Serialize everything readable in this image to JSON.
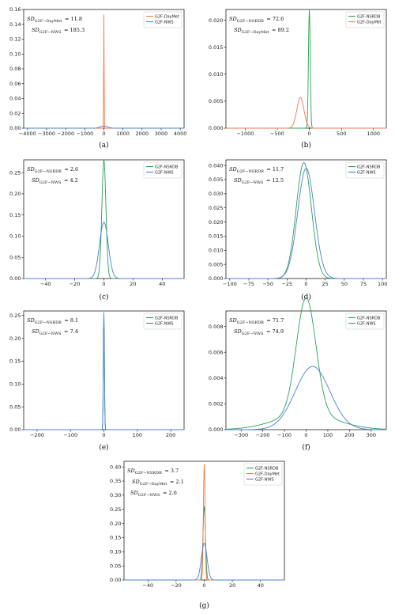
{
  "colors": {
    "NSRDB": "#2ca05a",
    "DayMet": "#ee7b4a",
    "NWS": "#4c7fd4"
  },
  "chart_data": [
    {
      "type": "line",
      "caption": "(a)",
      "xlim": [
        -4200,
        4200
      ],
      "ylim": [
        0,
        0.16
      ],
      "xticks": [
        -4000,
        -3000,
        -2000,
        -1000,
        0,
        1000,
        2000,
        3000,
        4000
      ],
      "xtick_labels": [
        "−4000",
        "−3000",
        "−2000",
        "−1000",
        "0",
        "1000",
        "2000",
        "3000",
        "4000"
      ],
      "yticks": [
        0,
        0.02,
        0.04,
        0.06,
        0.08,
        0.1,
        0.12,
        0.14,
        0.16
      ],
      "ytick_labels": [
        "0.00",
        "0.02",
        "0.04",
        "0.06",
        "0.08",
        "0.10",
        "0.12",
        "0.14",
        "0.16"
      ],
      "legend": {
        "position": "top-right",
        "entries": [
          "DayMet",
          "NWS"
        ],
        "labels": [
          "G2F-DayMet",
          "G2F-NWS"
        ]
      },
      "annotations": [
        {
          "sd": "SD",
          "sub": "G2F−DayMet",
          "value": "= 11.8"
        },
        {
          "sd": "SD",
          "sub": "G2F−NWS",
          "value": "= 185.3"
        }
      ],
      "series": [
        {
          "key": "DayMet",
          "peak": 0.153,
          "center": 0,
          "sd": 11.8
        },
        {
          "key": "NWS",
          "peak": 0.003,
          "center": 0,
          "sd": 185.3
        }
      ]
    },
    {
      "type": "line",
      "caption": "(b)",
      "xlim": [
        -1300,
        1200
      ],
      "ylim": [
        0,
        0.022
      ],
      "xticks": [
        -1000,
        -500,
        0,
        500,
        1000
      ],
      "xtick_labels": [
        "−1000",
        "−500",
        "0",
        "500",
        "1000"
      ],
      "yticks": [
        0,
        0.005,
        0.01,
        0.015,
        0.02
      ],
      "ytick_labels": [
        "0.000",
        "0.005",
        "0.010",
        "0.015",
        "0.020"
      ],
      "legend": {
        "position": "top-right",
        "entries": [
          "NSRDB",
          "DayMet"
        ],
        "labels": [
          "G2F-NSRDB",
          "G2F-DayMet"
        ]
      },
      "annotations": [
        {
          "sd": "SD",
          "sub": "G2F−NSRDB",
          "value": "= 72.6"
        },
        {
          "sd": "SD",
          "sub": "G2F−DayMet",
          "value": "= 89.2"
        }
      ],
      "series": [
        {
          "key": "NSRDB",
          "peak": 0.0219,
          "center": 0,
          "sd": 14
        },
        {
          "key": "DayMet",
          "peak": 0.0057,
          "center": -140,
          "sd": 55
        }
      ]
    },
    {
      "type": "line",
      "caption": "(c)",
      "xlim": [
        -55,
        55
      ],
      "ylim": [
        0,
        0.28
      ],
      "xticks": [
        -40,
        -20,
        0,
        20,
        40
      ],
      "xtick_labels": [
        "−40",
        "−20",
        "0",
        "20",
        "40"
      ],
      "yticks": [
        0,
        0.05,
        0.1,
        0.15,
        0.2,
        0.25
      ],
      "ytick_labels": [
        "0.00",
        "0.05",
        "0.10",
        "0.15",
        "0.20",
        "0.25"
      ],
      "legend": {
        "position": "top-right",
        "entries": [
          "NSRDB",
          "NWS"
        ],
        "labels": [
          "G2F-NSRDB",
          "G2F-NWS"
        ]
      },
      "annotations": [
        {
          "sd": "SD",
          "sub": "G2F−NSRDB",
          "value": "= 2.6"
        },
        {
          "sd": "SD",
          "sub": "G2F−NWS",
          "value": "= 4.2"
        }
      ],
      "series": [
        {
          "key": "NSRDB",
          "peak": 0.279,
          "center": 0,
          "sd": 1.4
        },
        {
          "key": "NWS",
          "peak": 0.133,
          "center": 0,
          "sd": 3.0
        }
      ]
    },
    {
      "type": "line",
      "caption": "(d)",
      "xlim": [
        -105,
        105
      ],
      "ylim": [
        0,
        0.042
      ],
      "xticks": [
        -100,
        -75,
        -50,
        -25,
        0,
        25,
        50,
        75,
        100
      ],
      "xtick_labels": [
        "−100",
        "−75",
        "−50",
        "−25",
        "0",
        "25",
        "50",
        "75",
        "100"
      ],
      "yticks": [
        0,
        0.005,
        0.01,
        0.015,
        0.02,
        0.025,
        0.03,
        0.035,
        0.04
      ],
      "ytick_labels": [
        "0.000",
        "0.005",
        "0.010",
        "0.015",
        "0.020",
        "0.025",
        "0.030",
        "0.035",
        "0.040"
      ],
      "legend": {
        "position": "top-right",
        "entries": [
          "NSRDB",
          "NWS"
        ],
        "labels": [
          "G2F-NSRDB",
          "G2F-NWS"
        ]
      },
      "annotations": [
        {
          "sd": "SD",
          "sub": "G2F−NSRDB",
          "value": "= 11.7"
        },
        {
          "sd": "SD",
          "sub": "G2F−NWS",
          "value": "= 12.5"
        }
      ],
      "series": [
        {
          "key": "NSRDB",
          "peak": 0.041,
          "center": -3,
          "sd": 10
        },
        {
          "key": "NWS",
          "peak": 0.039,
          "center": 0,
          "sd": 11
        }
      ]
    },
    {
      "type": "line",
      "caption": "(e)",
      "xlim": [
        -240,
        240
      ],
      "ylim": [
        0,
        0.26
      ],
      "xticks": [
        -200,
        -100,
        0,
        100,
        200
      ],
      "xtick_labels": [
        "−200",
        "−100",
        "0",
        "100",
        "200"
      ],
      "yticks": [
        0,
        0.05,
        0.1,
        0.15,
        0.2,
        0.25
      ],
      "ytick_labels": [
        "0.00",
        "0.05",
        "0.10",
        "0.15",
        "0.20",
        "0.25"
      ],
      "legend": {
        "position": "top-right",
        "entries": [
          "NSRDB",
          "NWS"
        ],
        "labels": [
          "G2F-NSRDB",
          "G2F-NWS"
        ]
      },
      "annotations": [
        {
          "sd": "SD",
          "sub": "G2F−NSRDB",
          "value": "= 8.1"
        },
        {
          "sd": "SD",
          "sub": "G2F−NWS",
          "value": "= 7.4"
        }
      ],
      "series": [
        {
          "key": "NSRDB",
          "peak": 0.255,
          "center": 0,
          "sd": 1.6
        },
        {
          "key": "NWS",
          "peak": 0.257,
          "center": 0,
          "sd": 1.55
        }
      ]
    },
    {
      "type": "line",
      "caption": "(f)",
      "xlim": [
        -370,
        370
      ],
      "ylim": [
        0,
        0.0092
      ],
      "xticks": [
        -300,
        -200,
        -100,
        0,
        100,
        200,
        300
      ],
      "xtick_labels": [
        "−300",
        "−200",
        "−100",
        "0",
        "100",
        "200",
        "300"
      ],
      "yticks": [
        0,
        0.002,
        0.004,
        0.006,
        0.008
      ],
      "ytick_labels": [
        "0.000",
        "0.002",
        "0.004",
        "0.006",
        "0.008"
      ],
      "legend": {
        "position": "top-right",
        "entries": [
          "NSRDB",
          "NWS"
        ],
        "labels": [
          "G2F-NSRDB",
          "G2F-NWS"
        ]
      },
      "annotations": [
        {
          "sd": "SD",
          "sub": "G2F−NSRDB",
          "value": "= 71.7"
        },
        {
          "sd": "SD",
          "sub": "G2F−NWS",
          "value": "= 74.9"
        }
      ],
      "series": [
        {
          "key": "NSRDB",
          "peak": 0.009,
          "center": 0,
          "sd": 45,
          "shoulder_peak": 0.0012,
          "shoulder_center": 0,
          "shoulder_sd": 140
        },
        {
          "key": "NWS",
          "peak": 0.0049,
          "center": 30,
          "sd": 80
        }
      ]
    },
    {
      "type": "line",
      "caption": "(g)",
      "xlim": [
        -57,
        57
      ],
      "ylim": [
        0,
        0.42
      ],
      "xticks": [
        -40,
        -20,
        0,
        20,
        40
      ],
      "xtick_labels": [
        "−40",
        "−20",
        "0",
        "20",
        "40"
      ],
      "yticks": [
        0,
        0.05,
        0.1,
        0.15,
        0.2,
        0.25,
        0.3,
        0.35,
        0.4
      ],
      "ytick_labels": [
        "0.00",
        "0.05",
        "0.10",
        "0.15",
        "0.20",
        "0.25",
        "0.30",
        "0.35",
        "0.40"
      ],
      "legend": {
        "position": "top-right",
        "entries": [
          "NSRDB",
          "DayMet",
          "NWS"
        ],
        "labels": [
          "G2F-NSRDB",
          "G2F-DayMet",
          "G2F-NWS"
        ]
      },
      "annotations": [
        {
          "sd": "SD",
          "sub": "G2F−NSRDB",
          "value": "= 3.7"
        },
        {
          "sd": "SD",
          "sub": "G2F−DayMet",
          "value": "= 2.1"
        },
        {
          "sd": "SD",
          "sub": "G2F−NWS",
          "value": "= 2.6"
        }
      ],
      "series": [
        {
          "key": "NSRDB",
          "peak": 0.26,
          "center": 0,
          "sd": 0.9
        },
        {
          "key": "DayMet",
          "peak": 0.41,
          "center": 0,
          "sd": 0.6
        },
        {
          "key": "NWS",
          "peak": 0.13,
          "center": 0,
          "sd": 2.0
        }
      ]
    }
  ]
}
